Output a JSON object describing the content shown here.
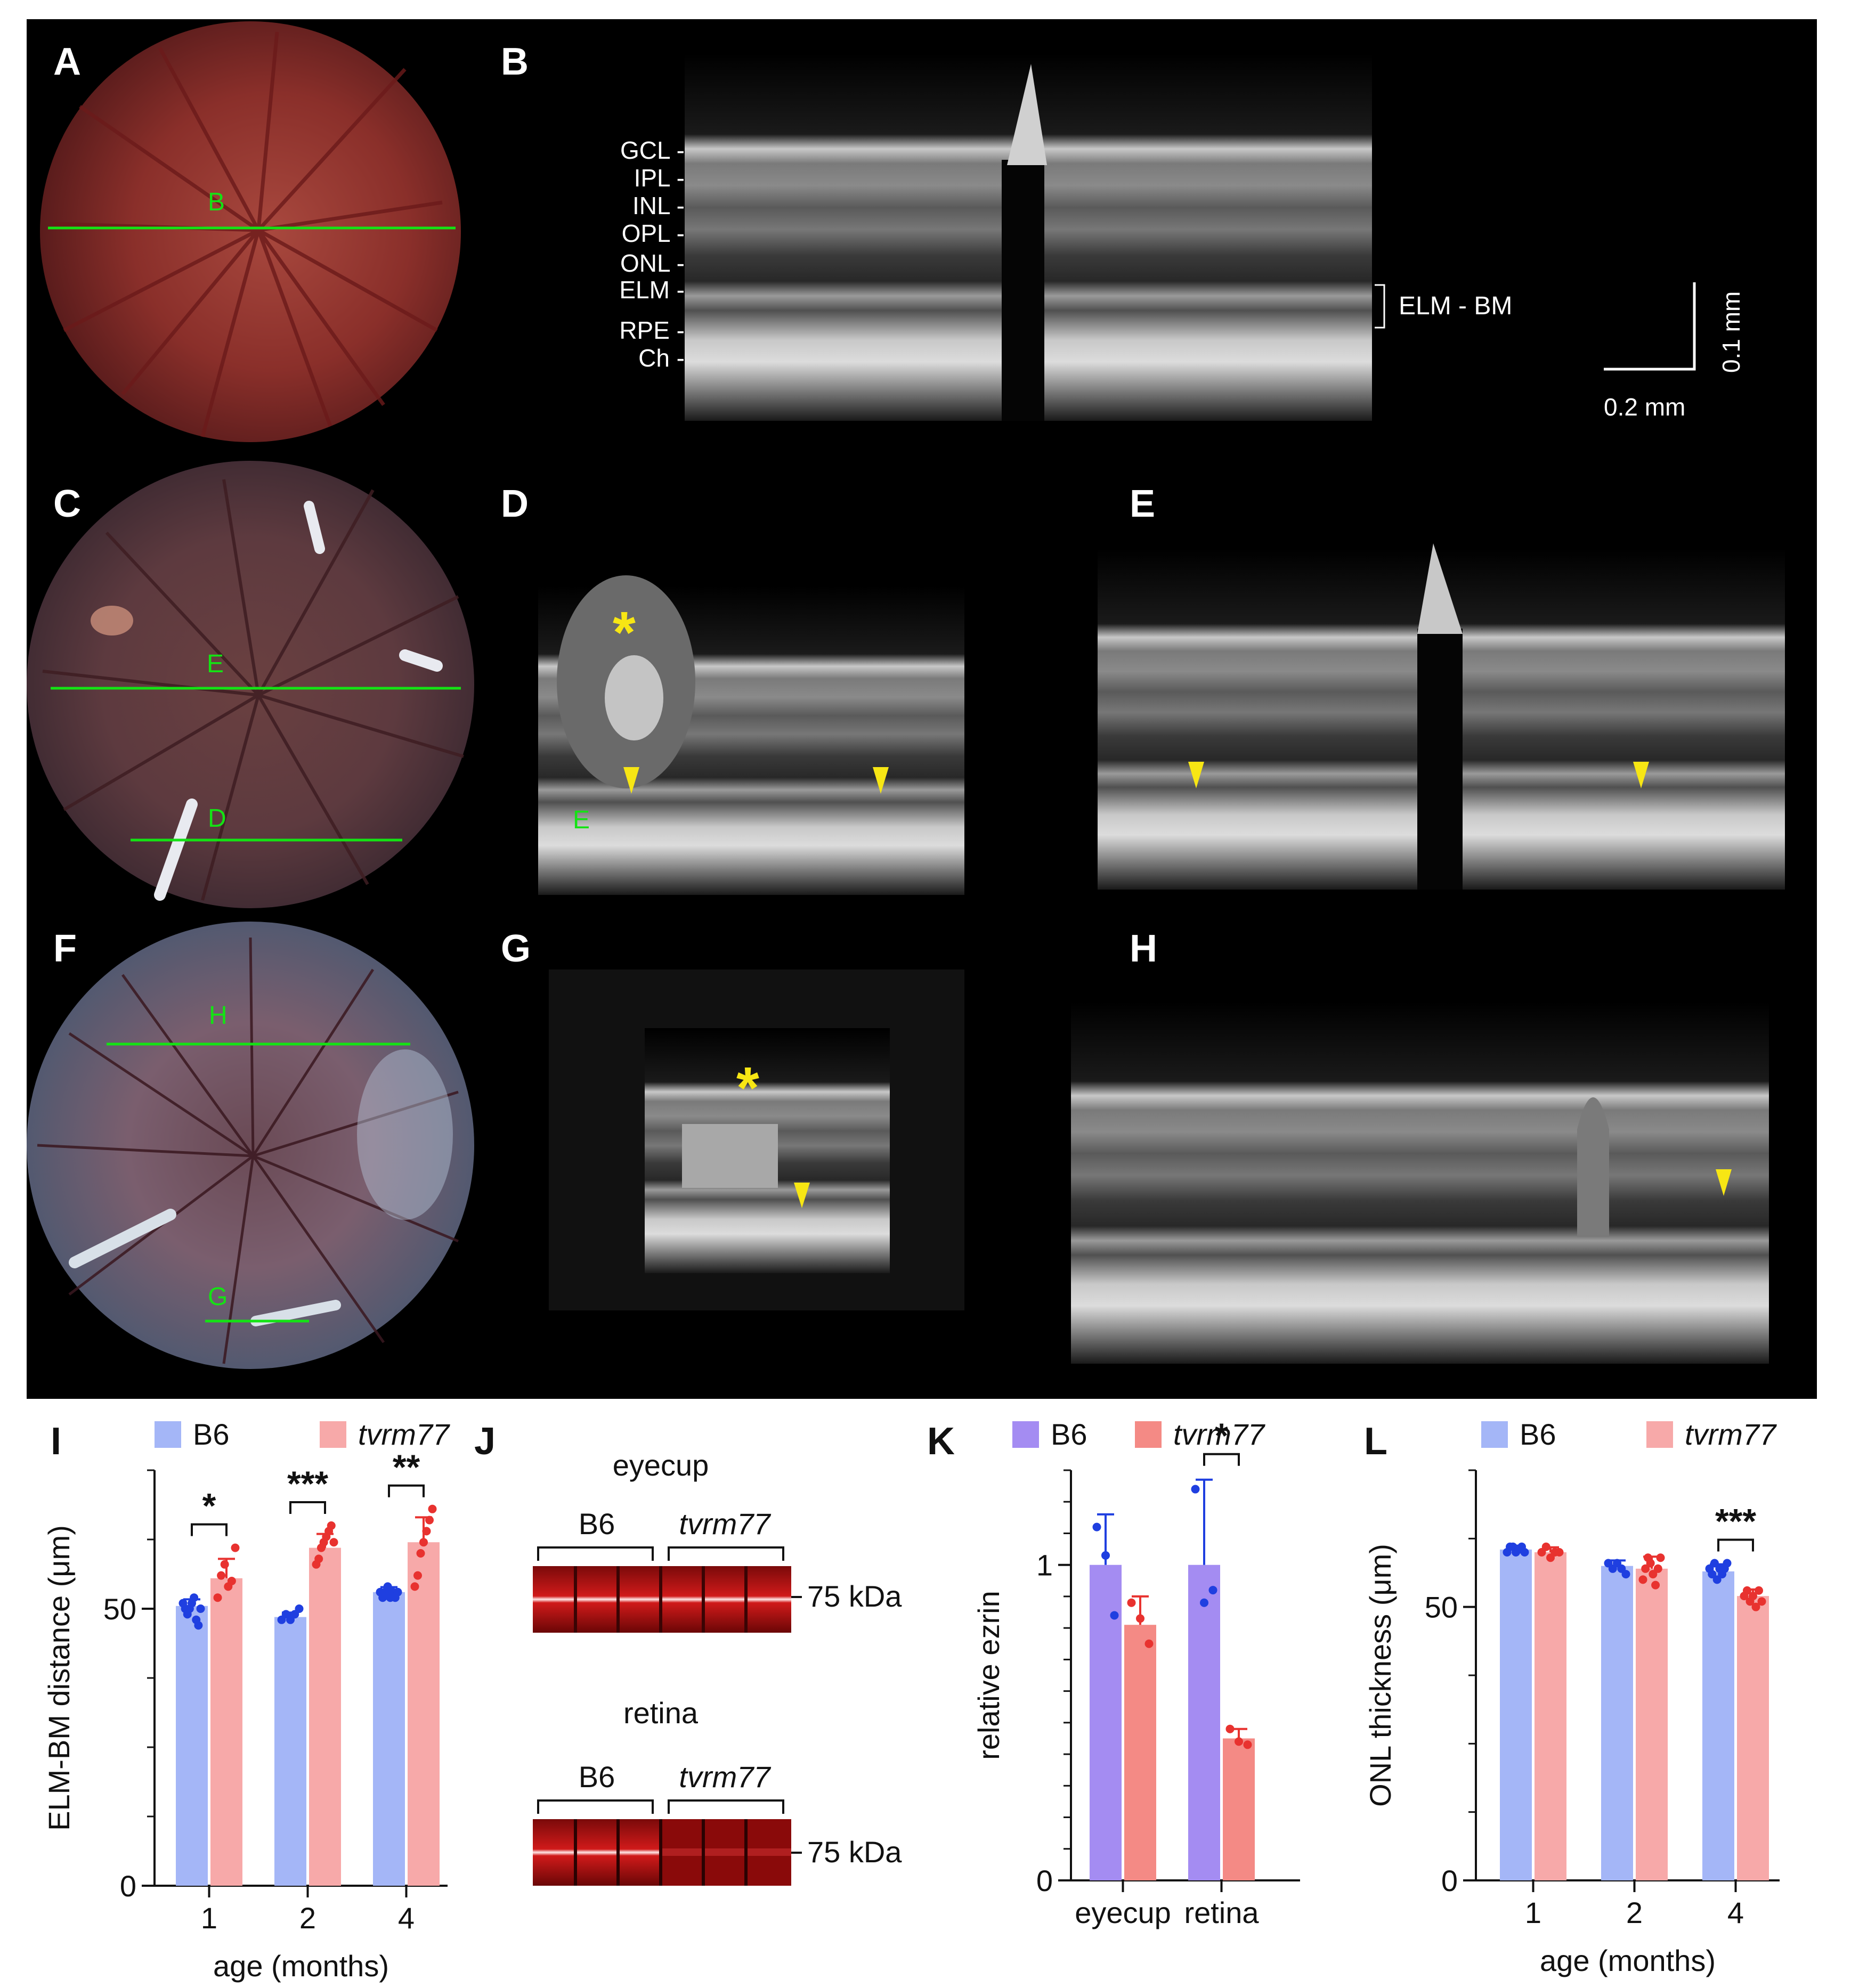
{
  "colors": {
    "b6_I": "#a4b6f7",
    "b6_dot": "#1f3fe0",
    "tv_I": "#f7a9a9",
    "tv_dot": "#e8322f",
    "b6_K": "#a48cf2",
    "tv_K": "#f48a85",
    "green": "#14e314",
    "yellow": "#f7e614"
  },
  "panels": {
    "A": "A",
    "B": "B",
    "C": "C",
    "D": "D",
    "E": "E",
    "F": "F",
    "G": "G",
    "H": "H",
    "I": "I",
    "J": "J",
    "K": "K",
    "L": "L"
  },
  "fundus_lines": {
    "A_B": "B",
    "C_E": "E",
    "C_D": "D",
    "F_H": "H",
    "F_G": "G"
  },
  "oct_B": {
    "layers": [
      "GCL -",
      "IPL -",
      "INL -",
      "OPL -",
      "ONL -",
      "ELM -",
      "RPE -",
      "Ch -"
    ],
    "bracket_label": "ELM - BM",
    "scale_h": "0.2 mm",
    "scale_v": "0.1 mm"
  },
  "markers": {
    "asterisk": "*",
    "D_inset": "E"
  },
  "blots": {
    "top_title": "eyecup",
    "bottom_title": "retina",
    "group1": "B6",
    "group2": "tvrm77",
    "mw": "75 kDa"
  },
  "legend": {
    "b6": "B6",
    "tv": "tvrm77"
  },
  "chart_data": [
    {
      "panel": "I",
      "type": "bar",
      "categories": [
        "1",
        "2",
        "4"
      ],
      "xlabel": "age (months)",
      "ylabel": "ELM-BM distance (μm)",
      "ylim": [
        0,
        75
      ],
      "yticks": [
        0,
        50
      ],
      "series": [
        {
          "name": "B6",
          "values": [
            50.5,
            48.5,
            53
          ],
          "err": [
            1.2,
            0.8,
            0.9
          ],
          "points": [
            [
              51,
              50,
              49,
              50,
              51,
              52,
              48,
              47,
              50
            ],
            [
              48,
              49,
              48,
              49,
              50
            ],
            [
              53,
              52,
              53,
              54,
              52,
              53,
              52,
              53
            ]
          ]
        },
        {
          "name": "tvrm77",
          "values": [
            55.5,
            61,
            62
          ],
          "err": [
            3.5,
            2.5,
            4.5
          ],
          "points": [
            [
              52,
              56,
              58,
              54,
              55,
              61
            ],
            [
              58,
              59,
              61,
              62,
              63,
              64,
              65,
              62
            ],
            [
              54,
              56,
              60,
              62,
              64,
              66,
              68
            ]
          ]
        }
      ],
      "significance": [
        "*",
        "***",
        "**"
      ]
    },
    {
      "panel": "K",
      "type": "bar",
      "categories": [
        "eyecup",
        "retina"
      ],
      "xlabel": "",
      "ylabel": "relative ezrin",
      "ylim": [
        0,
        1.3
      ],
      "yticks": [
        0,
        1
      ],
      "series": [
        {
          "name": "B6",
          "values": [
            1.0,
            1.0
          ],
          "err": [
            0.16,
            0.27
          ],
          "points": [
            [
              1.12,
              1.03,
              0.84
            ],
            [
              1.24,
              0.88,
              0.92
            ]
          ]
        },
        {
          "name": "tvrm77",
          "values": [
            0.81,
            0.45
          ],
          "err": [
            0.09,
            0.03
          ],
          "points": [
            [
              0.88,
              0.83,
              0.75
            ],
            [
              0.48,
              0.44,
              0.43
            ]
          ]
        }
      ],
      "significance": [
        "",
        "*"
      ]
    },
    {
      "panel": "L",
      "type": "bar",
      "categories": [
        "1",
        "2",
        "4"
      ],
      "xlabel": "age (months)",
      "ylabel": "ONL thickness (μm)",
      "ylim": [
        0,
        75
      ],
      "yticks": [
        0,
        50
      ],
      "series": [
        {
          "name": "B6",
          "values": [
            60.5,
            57.5,
            56.5
          ],
          "err": [
            0.7,
            1.0,
            1.3
          ],
          "points": [
            [
              60,
              61,
              61,
              60,
              60.5,
              61,
              60
            ],
            [
              58,
              57,
              58,
              57,
              56
            ],
            [
              57,
              56,
              58,
              55,
              57,
              56,
              57,
              58
            ]
          ]
        },
        {
          "name": "tvrm77",
          "values": [
            60,
            57,
            52
          ],
          "err": [
            0.9,
            2.2,
            1.2
          ],
          "points": [
            [
              60,
              61,
              59,
              60,
              60
            ],
            [
              55,
              57,
              59,
              58,
              56,
              54,
              57,
              59
            ],
            [
              52,
              53,
              51,
              52,
              50,
              53,
              51
            ]
          ]
        }
      ],
      "significance": [
        "",
        "",
        "***"
      ]
    }
  ]
}
